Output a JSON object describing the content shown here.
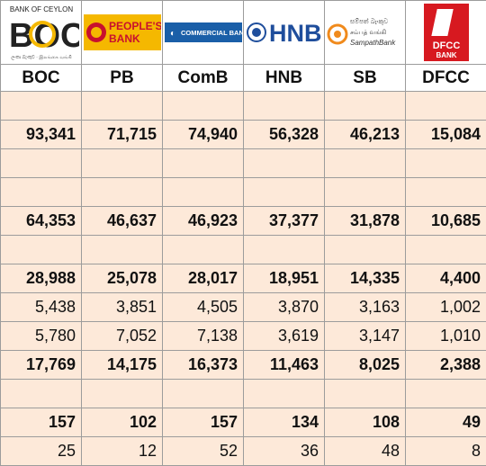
{
  "logos": {
    "boc": {
      "top_text": "BANK OF CEYLON",
      "mark": "BOC",
      "sub_text": "ලංකා බැංකුව · இலங்கை வங்கி",
      "color": "#f5b800"
    },
    "pb": {
      "text_line1": "PEOPLE'S",
      "text_line2": "BANK",
      "bg": "#f5b800",
      "fg": "#c8102e"
    },
    "comb": {
      "text": "COMMERCIAL BANK",
      "bg": "#1a5fa8"
    },
    "hnb": {
      "text": "HNB",
      "color": "#1f4e9c"
    },
    "sb": {
      "sinhala": "සම්පත් බැංකුව",
      "tamil": "சம்பத் வங்கி",
      "english": "SampathBank",
      "color": "#f08a1c"
    },
    "dfcc": {
      "text_line1": "DFCC",
      "text_line2": "BANK",
      "color": "#d71920"
    }
  },
  "columns": [
    "BOC",
    "PB",
    "ComB",
    "HNB",
    "SB",
    "DFCC"
  ],
  "rows": [
    {
      "style": "blank",
      "values": [
        "",
        "",
        "",
        "",
        "",
        ""
      ]
    },
    {
      "style": "bold",
      "values": [
        "93,341",
        "71,715",
        "74,940",
        "56,328",
        "46,213",
        "15,084"
      ]
    },
    {
      "style": "blank",
      "values": [
        "",
        "",
        "",
        "",
        "",
        ""
      ]
    },
    {
      "style": "blank",
      "values": [
        "",
        "",
        "",
        "",
        "",
        ""
      ]
    },
    {
      "style": "bold",
      "values": [
        "64,353",
        "46,637",
        "46,923",
        "37,377",
        "31,878",
        "10,685"
      ]
    },
    {
      "style": "blank",
      "values": [
        "",
        "",
        "",
        "",
        "",
        ""
      ]
    },
    {
      "style": "bold",
      "values": [
        "28,988",
        "25,078",
        "28,017",
        "18,951",
        "14,335",
        "4,400"
      ]
    },
    {
      "style": "normal",
      "values": [
        "5,438",
        "3,851",
        "4,505",
        "3,870",
        "3,163",
        "1,002"
      ]
    },
    {
      "style": "normal",
      "values": [
        "5,780",
        "7,052",
        "7,138",
        "3,619",
        "3,147",
        "1,010"
      ]
    },
    {
      "style": "bold",
      "values": [
        "17,769",
        "14,175",
        "16,373",
        "11,463",
        "8,025",
        "2,388"
      ]
    },
    {
      "style": "blank",
      "values": [
        "",
        "",
        "",
        "",
        "",
        ""
      ]
    },
    {
      "style": "bold",
      "values": [
        "157",
        "102",
        "157",
        "134",
        "108",
        "49"
      ]
    },
    {
      "style": "normal",
      "values": [
        "25",
        "12",
        "52",
        "36",
        "48",
        "8"
      ]
    }
  ]
}
